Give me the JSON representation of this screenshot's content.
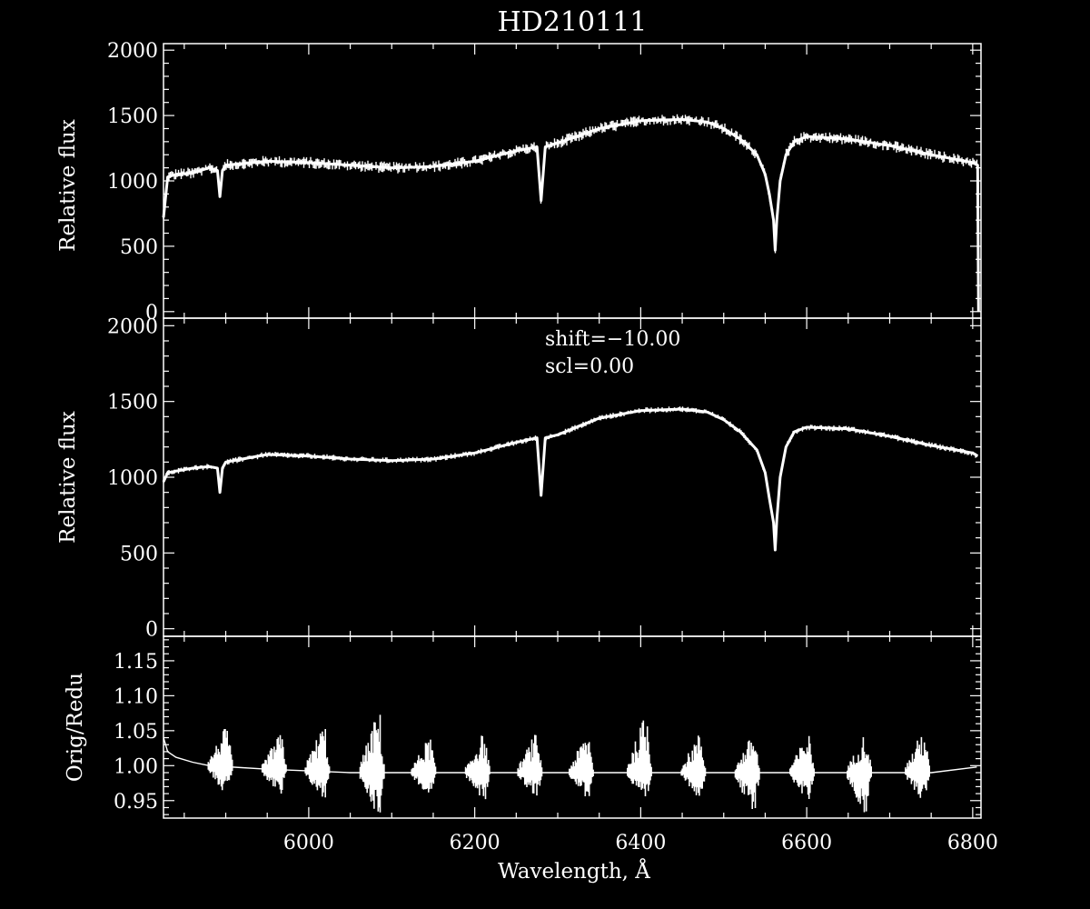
{
  "chart_data": {
    "title": "HD210111",
    "xlabel": "Wavelength, Å",
    "xlim": [
      5825,
      6810
    ],
    "xticks": [
      6000,
      6200,
      6400,
      6600,
      6800
    ],
    "grid": false,
    "legend": "none",
    "colors": {
      "background": "#000000",
      "foreground": "#ffffff"
    },
    "panels": [
      {
        "id": "top",
        "type": "line",
        "ylabel": "Relative flux",
        "ylim": [
          -50,
          2050
        ],
        "yticks": [
          0,
          500,
          1000,
          1500,
          2000
        ],
        "noise_amplitude": 45,
        "x": [
          5825,
          5830,
          5840,
          5860,
          5880,
          5890,
          5893,
          5896,
          5900,
          5950,
          6000,
          6050,
          6100,
          6150,
          6200,
          6250,
          6275,
          6280,
          6285,
          6300,
          6350,
          6400,
          6450,
          6480,
          6500,
          6520,
          6540,
          6550,
          6555,
          6560,
          6562,
          6564,
          6568,
          6575,
          6585,
          6600,
          6650,
          6700,
          6750,
          6800,
          6806,
          6807
        ],
        "y": [
          720,
          1030,
          1050,
          1060,
          1100,
          1080,
          880,
          1080,
          1120,
          1150,
          1140,
          1120,
          1100,
          1110,
          1150,
          1230,
          1260,
          850,
          1260,
          1290,
          1400,
          1460,
          1470,
          1450,
          1400,
          1320,
          1200,
          1050,
          900,
          700,
          470,
          700,
          1000,
          1200,
          1300,
          1340,
          1320,
          1270,
          1200,
          1140,
          1120,
          0
        ]
      },
      {
        "id": "middle",
        "type": "line",
        "ylabel": "Relative flux",
        "ylim": [
          -50,
          2050
        ],
        "yticks": [
          0,
          500,
          1000,
          1500,
          2000
        ],
        "noise_amplitude": 20,
        "annotations": [
          "shift=−10.00",
          "scl=0.00"
        ],
        "x": [
          5825,
          5830,
          5840,
          5860,
          5880,
          5890,
          5893,
          5896,
          5900,
          5950,
          6000,
          6050,
          6100,
          6150,
          6200,
          6250,
          6275,
          6280,
          6285,
          6300,
          6350,
          6400,
          6450,
          6480,
          6500,
          6520,
          6540,
          6550,
          6555,
          6560,
          6562,
          6564,
          6568,
          6575,
          6585,
          6600,
          6650,
          6700,
          6750,
          6800,
          6806
        ],
        "y": [
          970,
          1030,
          1040,
          1060,
          1070,
          1060,
          900,
          1060,
          1100,
          1150,
          1140,
          1120,
          1110,
          1120,
          1160,
          1230,
          1260,
          880,
          1260,
          1280,
          1390,
          1440,
          1450,
          1430,
          1380,
          1300,
          1180,
          1030,
          860,
          700,
          520,
          720,
          1000,
          1200,
          1300,
          1330,
          1320,
          1270,
          1210,
          1160,
          1140
        ]
      },
      {
        "id": "bottom",
        "type": "line",
        "ylabel": "Orig/Redu",
        "ylim": [
          0.925,
          1.185
        ],
        "yticks": [
          0.95,
          1.0,
          1.05,
          1.1,
          1.15
        ],
        "ytick_labels": [
          "0.95",
          "1.00",
          "1.05",
          "1.10",
          "1.15"
        ],
        "x": [
          5825,
          5830,
          5840,
          5860,
          5880,
          5950,
          6050,
          6150,
          6250,
          6350,
          6450,
          6550,
          6650,
          6750,
          6805
        ],
        "y": [
          1.04,
          1.02,
          1.012,
          1.005,
          1.0,
          0.995,
          0.99,
          0.99,
          0.99,
          0.99,
          0.99,
          0.99,
          0.99,
          0.99,
          0.998
        ],
        "bursts": [
          {
            "x": 5895,
            "amp_up": 0.055,
            "amp_down": 0.04
          },
          {
            "x": 5960,
            "amp_up": 0.05,
            "amp_down": 0.04
          },
          {
            "x": 6012,
            "amp_up": 0.065,
            "amp_down": 0.04
          },
          {
            "x": 6078,
            "amp_up": 0.085,
            "amp_down": 0.06
          },
          {
            "x": 6140,
            "amp_up": 0.05,
            "amp_down": 0.035
          },
          {
            "x": 6205,
            "amp_up": 0.055,
            "amp_down": 0.04
          },
          {
            "x": 6268,
            "amp_up": 0.055,
            "amp_down": 0.035
          },
          {
            "x": 6330,
            "amp_up": 0.055,
            "amp_down": 0.035
          },
          {
            "x": 6400,
            "amp_up": 0.08,
            "amp_down": 0.045
          },
          {
            "x": 6465,
            "amp_up": 0.055,
            "amp_down": 0.035
          },
          {
            "x": 6530,
            "amp_up": 0.055,
            "amp_down": 0.06
          },
          {
            "x": 6596,
            "amp_up": 0.055,
            "amp_down": 0.04
          },
          {
            "x": 6665,
            "amp_up": 0.055,
            "amp_down": 0.06
          },
          {
            "x": 6735,
            "amp_up": 0.06,
            "amp_down": 0.04
          }
        ]
      }
    ]
  }
}
